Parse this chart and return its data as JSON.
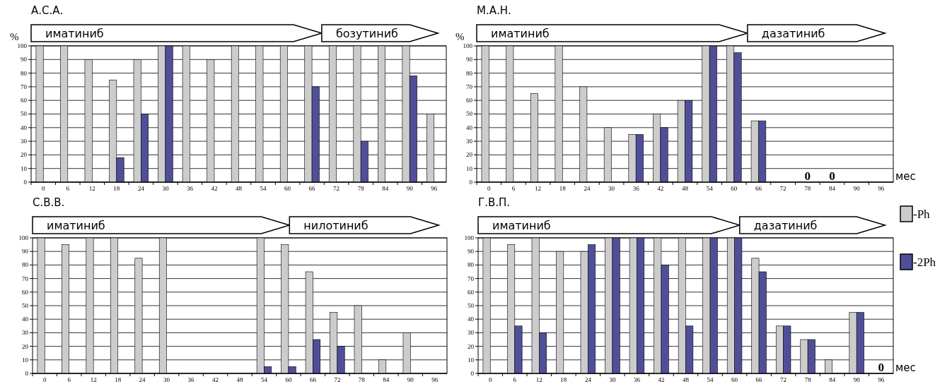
{
  "chart_data": [
    {
      "type": "bar",
      "title": "А.С.А.",
      "ylabel": "%",
      "categories": [
        "0",
        "6",
        "12",
        "18",
        "24",
        "30",
        "36",
        "42",
        "48",
        "54",
        "60",
        "66",
        "72",
        "78",
        "84",
        "90",
        "96"
      ],
      "series": [
        {
          "color": "#cccccc",
          "values": [
            100,
            100,
            90,
            75,
            90,
            100,
            100,
            90,
            100,
            100,
            100,
            100,
            100,
            100,
            100,
            100,
            50
          ]
        },
        {
          "color": "#4f4f99",
          "values": [
            0,
            0,
            0,
            18,
            50,
            100,
            0,
            0,
            0,
            0,
            0,
            70,
            0,
            30,
            0,
            78,
            0
          ]
        }
      ],
      "ylim": [
        0,
        100
      ],
      "yticks": [
        0,
        10,
        20,
        30,
        40,
        50,
        60,
        70,
        80,
        90,
        100
      ],
      "grid": "y",
      "annotations": [
        "иматиниб",
        "бозутиниб"
      ]
    },
    {
      "type": "bar",
      "title": "М.А.Н.",
      "ylabel": "%",
      "xlabel": "мес",
      "categories": [
        "0",
        "6",
        "12",
        "18",
        "24",
        "30",
        "36",
        "42",
        "48",
        "54",
        "60",
        "66",
        "72",
        "78",
        "84",
        "90",
        "96"
      ],
      "series": [
        {
          "color": "#cccccc",
          "values": [
            100,
            100,
            65,
            100,
            70,
            40,
            35,
            50,
            60,
            100,
            100,
            45,
            0,
            0,
            0,
            0,
            0
          ]
        },
        {
          "color": "#4f4f99",
          "values": [
            0,
            0,
            0,
            0,
            0,
            0,
            35,
            40,
            60,
            100,
            95,
            45,
            0,
            0,
            0,
            0,
            0
          ]
        }
      ],
      "ylim": [
        0,
        100
      ],
      "yticks": [
        0,
        10,
        20,
        30,
        40,
        50,
        60,
        70,
        80,
        90,
        100
      ],
      "grid": "y",
      "annotations": [
        "иматиниб",
        "дазатиниб",
        {
          "text": "0",
          "x": "78",
          "y": 0
        },
        {
          "text": "0",
          "x": "84",
          "y": 0
        }
      ]
    },
    {
      "type": "bar",
      "title": "С.В.В.",
      "categories": [
        "0",
        "6",
        "12",
        "18",
        "24",
        "30",
        "36",
        "42",
        "48",
        "54",
        "60",
        "66",
        "72",
        "78",
        "84",
        "90",
        "96"
      ],
      "series": [
        {
          "color": "#cccccc",
          "values": [
            100,
            95,
            100,
            100,
            85,
            100,
            0,
            0,
            0,
            100,
            95,
            75,
            45,
            50,
            10,
            30,
            0
          ]
        },
        {
          "color": "#4f4f99",
          "values": [
            0,
            0,
            0,
            0,
            0,
            0,
            0,
            0,
            0,
            5,
            5,
            25,
            20,
            0,
            0,
            0,
            0
          ]
        }
      ],
      "ylim": [
        0,
        100
      ],
      "yticks": [
        0,
        10,
        20,
        30,
        40,
        50,
        60,
        70,
        80,
        90,
        100
      ],
      "grid": "y",
      "annotations": [
        "иматиниб",
        "нилотиниб"
      ]
    },
    {
      "type": "bar",
      "title": "Г.В.П.",
      "xlabel": "мес",
      "categories": [
        "0",
        "6",
        "12",
        "18",
        "24",
        "30",
        "36",
        "42",
        "48",
        "54",
        "60",
        "66",
        "72",
        "78",
        "84",
        "90",
        "96"
      ],
      "series": [
        {
          "name": "-Ph",
          "color": "#cccccc",
          "values": [
            100,
            95,
            100,
            90,
            90,
            100,
            100,
            100,
            100,
            100,
            100,
            85,
            35,
            25,
            10,
            45,
            0
          ]
        },
        {
          "name": "-2Ph",
          "color": "#4f4f99",
          "values": [
            0,
            35,
            30,
            0,
            95,
            100,
            100,
            80,
            35,
            100,
            100,
            75,
            35,
            25,
            0,
            45,
            0
          ]
        }
      ],
      "ylim": [
        0,
        100
      ],
      "yticks": [
        0,
        10,
        20,
        30,
        40,
        50,
        60,
        70,
        80,
        90,
        100
      ],
      "grid": "y",
      "legend": "right",
      "annotations": [
        "иматиниб",
        "дазатиниб",
        {
          "text": "0",
          "x": "96",
          "y": 0
        }
      ]
    }
  ]
}
